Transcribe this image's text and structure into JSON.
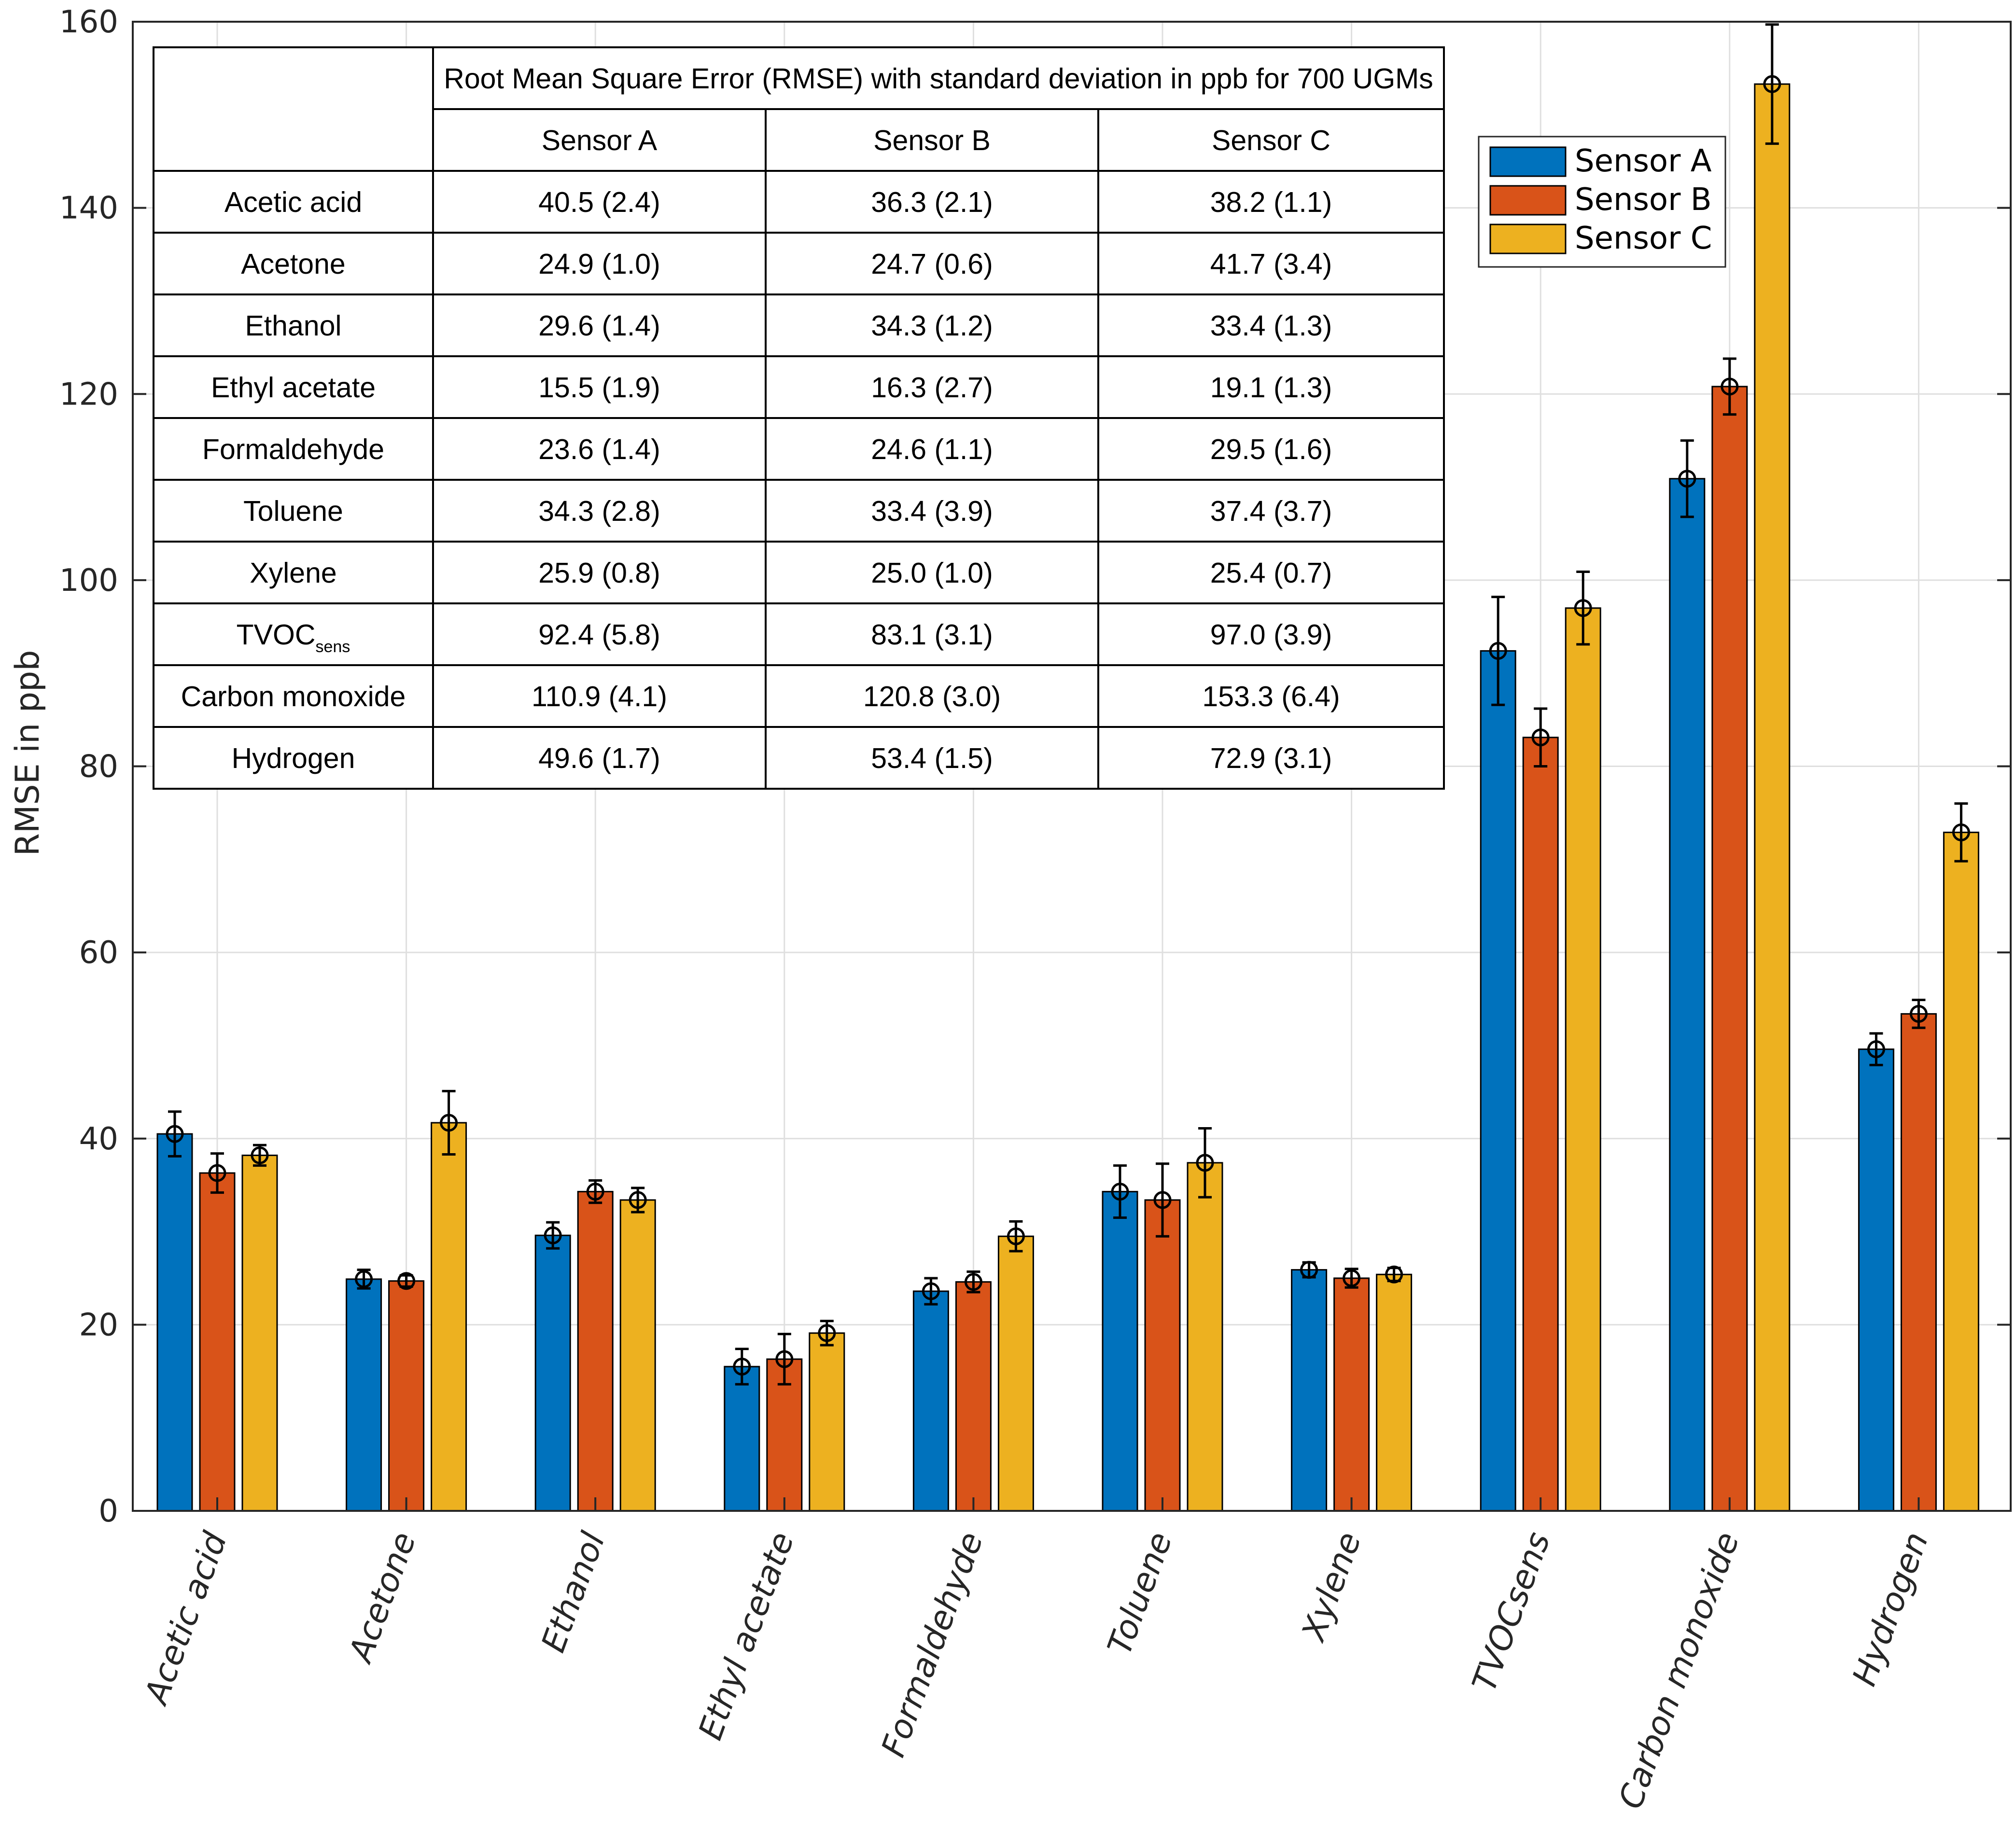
{
  "chart_data": {
    "type": "bar",
    "title": "",
    "xlabel": "",
    "ylabel": "RMSE in ppb",
    "ylim": [
      0,
      160
    ],
    "yticks": [
      0,
      20,
      40,
      60,
      80,
      100,
      120,
      140,
      160
    ],
    "grid": true,
    "legend_position": "top-right",
    "error_bars": true,
    "categories": [
      "Acetic acid",
      "Acetone",
      "Ethanol",
      "Ethyl acetate",
      "Formaldehyde",
      "Toluene",
      "Xylene",
      "TVOCsens",
      "Carbon monoxide",
      "Hydrogen"
    ],
    "series": [
      {
        "name": "Sensor A",
        "color": "#0072BD",
        "values": [
          40.5,
          24.9,
          29.6,
          15.5,
          23.6,
          34.3,
          25.9,
          92.4,
          110.9,
          49.6
        ],
        "errors": [
          2.4,
          1.0,
          1.4,
          1.9,
          1.4,
          2.8,
          0.8,
          5.8,
          4.1,
          1.7
        ]
      },
      {
        "name": "Sensor B",
        "color": "#D95319",
        "values": [
          36.3,
          24.7,
          34.3,
          16.3,
          24.6,
          33.4,
          25.0,
          83.1,
          120.8,
          53.4
        ],
        "errors": [
          2.1,
          0.6,
          1.2,
          2.7,
          1.1,
          3.9,
          1.0,
          3.1,
          3.0,
          1.5
        ]
      },
      {
        "name": "Sensor C",
        "color": "#EDB120",
        "values": [
          38.2,
          41.7,
          33.4,
          19.1,
          29.5,
          37.4,
          25.4,
          97.0,
          153.3,
          72.9
        ],
        "errors": [
          1.1,
          3.4,
          1.3,
          1.3,
          1.6,
          3.7,
          0.7,
          3.9,
          6.4,
          3.1
        ]
      }
    ]
  },
  "table": {
    "title": "Root Mean Square Error (RMSE) with standard deviation in ppb for 700 UGMs",
    "columns": [
      "Sensor A",
      "Sensor B",
      "Sensor C"
    ],
    "rows": [
      {
        "label": "Acetic acid",
        "cells": [
          "40.5 (2.4)",
          "36.3 (2.1)",
          "38.2 (1.1)"
        ]
      },
      {
        "label": "Acetone",
        "cells": [
          "24.9 (1.0)",
          "24.7 (0.6)",
          "41.7 (3.4)"
        ]
      },
      {
        "label": "Ethanol",
        "cells": [
          "29.6 (1.4)",
          "34.3 (1.2)",
          "33.4 (1.3)"
        ]
      },
      {
        "label": "Ethyl acetate",
        "cells": [
          "15.5 (1.9)",
          "16.3 (2.7)",
          "19.1 (1.3)"
        ]
      },
      {
        "label": "Formaldehyde",
        "cells": [
          "23.6 (1.4)",
          "24.6 (1.1)",
          "29.5 (1.6)"
        ]
      },
      {
        "label": "Toluene",
        "cells": [
          "34.3 (2.8)",
          "33.4 (3.9)",
          "37.4 (3.7)"
        ]
      },
      {
        "label": "Xylene",
        "cells": [
          "25.9 (0.8)",
          "25.0 (1.0)",
          "25.4 (0.7)"
        ]
      },
      {
        "label": "TVOC",
        "label_sub": "sens",
        "cells": [
          "92.4 (5.8)",
          "83.1 (3.1)",
          "97.0 (3.9)"
        ]
      },
      {
        "label": "Carbon monoxide",
        "cells": [
          "110.9 (4.1)",
          "120.8 (3.0)",
          "153.3 (6.4)"
        ]
      },
      {
        "label": "Hydrogen",
        "cells": [
          "49.6 (1.7)",
          "53.4 (1.5)",
          "72.9 (3.1)"
        ]
      }
    ]
  }
}
